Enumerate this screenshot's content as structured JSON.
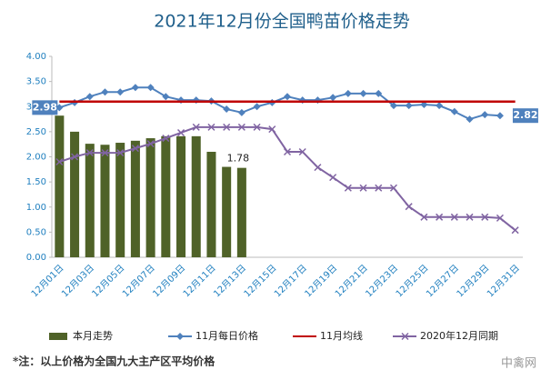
{
  "chart_data": {
    "type": "bar-line",
    "title": "2021年12月份全国鸭苗价格走势",
    "categories": [
      "12月01日",
      null,
      "12月03日",
      null,
      "12月05日",
      null,
      "12月07日",
      null,
      "12月09日",
      null,
      "12月11日",
      null,
      "12月13日",
      null,
      "12月15日",
      null,
      "12月17日",
      null,
      "12月19日",
      null,
      "12月21日",
      null,
      "12月23日",
      null,
      "12月25日",
      null,
      "12月27日",
      null,
      "12月29日",
      null,
      "12月31日"
    ],
    "ylim": [
      0,
      4
    ],
    "yticks": [
      {
        "value": 0,
        "label": "0.00"
      },
      {
        "value": 0.5,
        "label": "0.50"
      },
      {
        "value": 1,
        "label": "1.00"
      },
      {
        "value": 1.5,
        "label": "1.50"
      },
      {
        "value": 2,
        "label": "2.00"
      },
      {
        "value": 2.5,
        "label": "2.50"
      },
      {
        "value": 3,
        "label": "3.00"
      },
      {
        "value": 3.5,
        "label": "3.50"
      },
      {
        "value": 4,
        "label": "4.00"
      }
    ],
    "grid": false,
    "legend": "bottom",
    "series": [
      {
        "name": "本月走势",
        "type": "bar",
        "color": "#4f6228",
        "values": [
          2.82,
          2.5,
          2.26,
          2.24,
          2.28,
          2.32,
          2.37,
          2.41,
          2.41,
          2.41,
          2.1,
          1.8,
          1.78,
          null,
          null,
          null,
          null,
          null,
          null,
          null,
          null,
          null,
          null,
          null,
          null,
          null,
          null,
          null,
          null,
          null,
          null
        ],
        "value_labels": [
          null,
          null,
          null,
          null,
          null,
          null,
          null,
          null,
          null,
          null,
          null,
          null,
          "1.78",
          null,
          null,
          null,
          null,
          null,
          null,
          null,
          null,
          null,
          null,
          null,
          null,
          null,
          null,
          null,
          null,
          null,
          null
        ]
      },
      {
        "name": "11月每日价格",
        "type": "line",
        "marker": "diamond",
        "color": "#4f81bd",
        "values": [
          2.98,
          3.08,
          3.2,
          3.29,
          3.29,
          3.38,
          3.38,
          3.2,
          3.13,
          3.13,
          3.11,
          2.95,
          2.88,
          3.0,
          3.08,
          3.2,
          3.13,
          3.13,
          3.18,
          3.26,
          3.26,
          3.26,
          3.02,
          3.02,
          3.04,
          3.02,
          2.9,
          2.75,
          2.84,
          2.82,
          null
        ],
        "value_labels": [
          "2.98",
          null,
          null,
          null,
          null,
          null,
          null,
          null,
          null,
          null,
          null,
          null,
          null,
          null,
          null,
          null,
          null,
          null,
          null,
          null,
          null,
          null,
          null,
          null,
          null,
          null,
          null,
          null,
          null,
          "2.82",
          null
        ]
      },
      {
        "name": "11月均线",
        "type": "line",
        "marker": "none",
        "color": "#c00000",
        "values": [
          3.1,
          3.1,
          3.1,
          3.1,
          3.1,
          3.1,
          3.1,
          3.1,
          3.1,
          3.1,
          3.1,
          3.1,
          3.1,
          3.1,
          3.1,
          3.1,
          3.1,
          3.1,
          3.1,
          3.1,
          3.1,
          3.1,
          3.1,
          3.1,
          3.1,
          3.1,
          3.1,
          3.1,
          3.1,
          3.1,
          3.1
        ]
      },
      {
        "name": "2020年12月同期",
        "type": "line",
        "marker": "x",
        "color": "#8064a2",
        "values": [
          1.9,
          2.0,
          2.08,
          2.08,
          2.08,
          2.17,
          2.26,
          2.37,
          2.48,
          2.59,
          2.59,
          2.59,
          2.59,
          2.59,
          2.55,
          2.1,
          2.1,
          1.79,
          1.59,
          1.38,
          1.38,
          1.38,
          1.38,
          1.01,
          0.8,
          0.8,
          0.8,
          0.8,
          0.8,
          0.78,
          0.54
        ]
      }
    ],
    "footnote": "*注：以上价格为全国九大主产区平均价格",
    "watermark": "中禽网"
  }
}
